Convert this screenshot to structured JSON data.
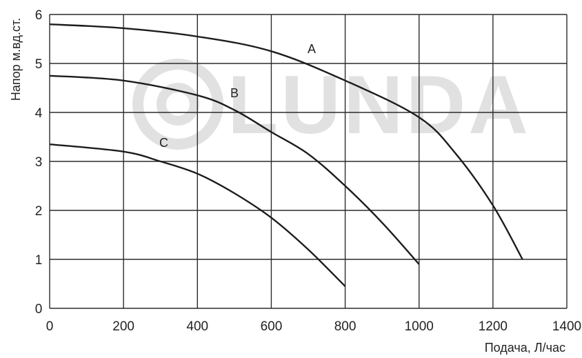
{
  "chart_data": {
    "type": "line",
    "title": "",
    "xlabel": "Подача, Л/час",
    "ylabel": "Напор м.вд.ст.",
    "xlim": [
      0,
      1400
    ],
    "ylim": [
      0,
      6
    ],
    "x_ticks": [
      "0",
      "200",
      "400",
      "600",
      "800",
      "1000",
      "1200",
      "1400"
    ],
    "y_ticks": [
      "0",
      "1",
      "2",
      "3",
      "4",
      "5",
      "6"
    ],
    "grid": true,
    "watermark": "LUNDA",
    "series": [
      {
        "name": "A",
        "x": [
          0,
          200,
          400,
          600,
          800,
          1000,
          1100,
          1200,
          1280
        ],
        "y": [
          5.8,
          5.72,
          5.55,
          5.25,
          4.65,
          3.9,
          3.15,
          2.1,
          1.0
        ]
      },
      {
        "name": "B",
        "x": [
          0,
          200,
          400,
          500,
          600,
          700,
          800,
          900,
          1000
        ],
        "y": [
          4.75,
          4.65,
          4.35,
          4.05,
          3.6,
          3.15,
          2.5,
          1.75,
          0.9
        ]
      },
      {
        "name": "C",
        "x": [
          0,
          200,
          300,
          400,
          500,
          600,
          700,
          800
        ],
        "y": [
          3.35,
          3.2,
          3.0,
          2.75,
          2.35,
          1.85,
          1.2,
          0.45
        ]
      }
    ]
  }
}
